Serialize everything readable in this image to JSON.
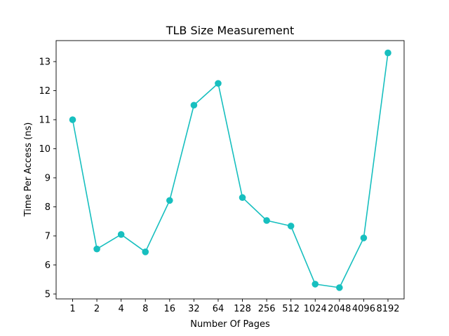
{
  "chart_data": {
    "type": "line",
    "title": "TLB Size Measurement",
    "xlabel": "Number Of Pages",
    "ylabel": "Time Per Access (ns)",
    "categories": [
      "1",
      "2",
      "4",
      "8",
      "16",
      "32",
      "64",
      "128",
      "256",
      "512",
      "1024",
      "2048",
      "4096",
      "8192"
    ],
    "series": [
      {
        "values": [
          11.0,
          6.55,
          7.05,
          6.45,
          8.22,
          11.5,
          12.25,
          8.32,
          7.53,
          7.34,
          5.34,
          5.22,
          6.93,
          13.3
        ]
      }
    ],
    "yticks": [
      5,
      6,
      7,
      8,
      9,
      10,
      11,
      12,
      13
    ],
    "ylim": [
      4.8,
      13.7
    ],
    "grid": false,
    "legend": "none",
    "line_color": "#17bfbf",
    "marker": "circle"
  }
}
